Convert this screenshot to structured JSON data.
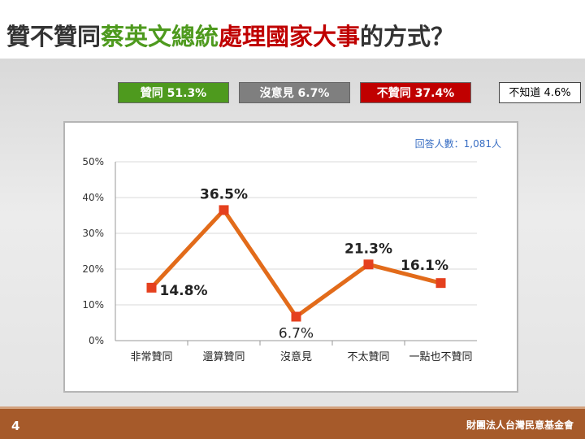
{
  "title": {
    "part1": "贊不贊同",
    "part2": "蔡英文總統",
    "part3": "處理國家大事",
    "part4": "的方式？"
  },
  "legend": {
    "agree": "贊同 51.3%",
    "no_opinion": "沒意見 6.7%",
    "disagree": "不贊同 37.4%",
    "dont_know": "不知道 4.6%"
  },
  "colors": {
    "agree": "#4e9a1e",
    "no_opinion": "#7f7f7f",
    "disagree": "#c00000",
    "line": "#e26b1a",
    "marker": "#e5401e",
    "footer": "#a65a2a"
  },
  "chart_data": {
    "type": "line",
    "categories": [
      "非常贊同",
      "還算贊同",
      "沒意見",
      "不太贊同",
      "一點也不贊同"
    ],
    "values": [
      14.8,
      36.5,
      6.7,
      21.3,
      16.1
    ],
    "data_labels": [
      "14.8%",
      "36.5%",
      "6.7%",
      "21.3%",
      "16.1%"
    ],
    "yticks": [
      "0%",
      "10%",
      "20%",
      "30%",
      "40%",
      "50%"
    ],
    "ylim": [
      0,
      50
    ],
    "ystep": 10,
    "annotation": "回答人數：1,081人",
    "grid": true,
    "legend_placement": "top"
  },
  "footer": {
    "page_number": "4",
    "organization": "財團法人台灣民意基金會"
  }
}
